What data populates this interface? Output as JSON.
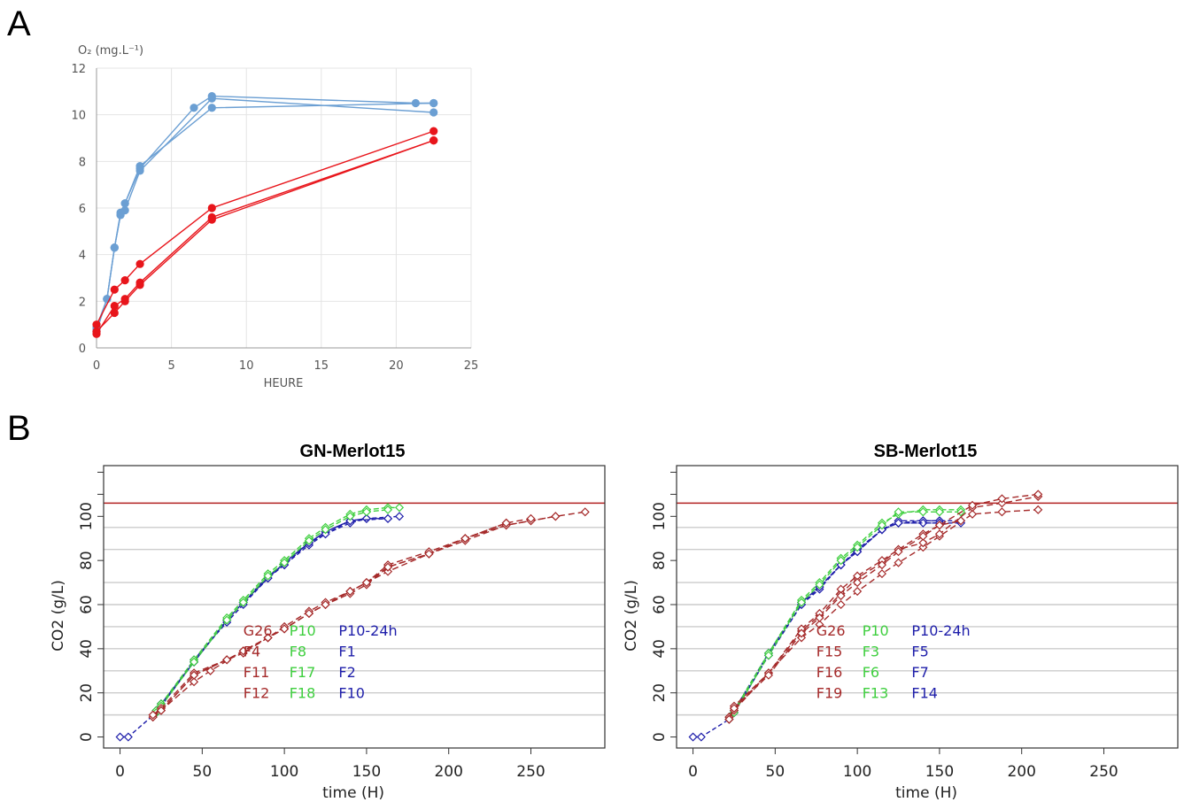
{
  "panel_labels": [
    "A",
    "B"
  ],
  "chart_data": [
    {
      "id": "A",
      "type": "line",
      "title": "",
      "ylabel": "O₂ (mg.L⁻¹)",
      "xlabel": "HEURE",
      "xlim": [
        0,
        25
      ],
      "ylim": [
        0,
        12
      ],
      "xticks": [
        0,
        5,
        10,
        15,
        20,
        25
      ],
      "yticks": [
        0,
        2,
        4,
        6,
        8,
        10,
        12
      ],
      "grid": true,
      "colors": {
        "blue": "#6b9fd3",
        "red": "#e8151b"
      },
      "series": [
        {
          "color": "blue",
          "x": [
            0,
            0.7,
            1.2,
            1.6,
            1.9,
            2.9,
            6.5,
            7.7,
            21.3,
            22.5
          ],
          "y": [
            0.8,
            2.1,
            4.3,
            5.7,
            6.2,
            7.7,
            10.3,
            10.8,
            10.5,
            10.5
          ]
        },
        {
          "color": "blue",
          "x": [
            0,
            0.7,
            1.2,
            1.6,
            1.9,
            2.9,
            7.7,
            22.5
          ],
          "y": [
            0.7,
            2.1,
            4.3,
            5.7,
            5.9,
            7.6,
            10.7,
            10.1
          ]
        },
        {
          "color": "blue",
          "x": [
            0,
            0.7,
            1.2,
            1.6,
            1.9,
            2.9,
            7.7,
            22.5
          ],
          "y": [
            0.9,
            2.1,
            4.3,
            5.8,
            6.2,
            7.8,
            10.3,
            10.5
          ]
        },
        {
          "color": "red",
          "x": [
            0,
            1.2,
            1.9,
            2.9,
            7.7,
            22.5
          ],
          "y": [
            1.0,
            2.5,
            2.9,
            3.6,
            6.0,
            9.3
          ]
        },
        {
          "color": "red",
          "x": [
            0,
            1.2,
            1.9,
            2.9,
            7.7,
            22.5
          ],
          "y": [
            0.6,
            1.8,
            2.1,
            2.8,
            5.6,
            8.9
          ]
        },
        {
          "color": "red",
          "x": [
            0,
            1.2,
            1.9,
            2.9,
            7.7,
            22.5
          ],
          "y": [
            0.7,
            1.5,
            2.0,
            2.7,
            5.5,
            8.9
          ]
        }
      ]
    },
    {
      "id": "B1",
      "type": "line",
      "title": "GN-Merlot15",
      "xlabel": "time (H)",
      "ylabel": "CO2 (g/L)",
      "xlim": [
        -10,
        295
      ],
      "ylim": [
        -5,
        123
      ],
      "xticks": [
        0,
        50,
        100,
        150,
        200,
        250
      ],
      "yticks": [
        0,
        20,
        40,
        60,
        80,
        100
      ],
      "hlines": [
        10,
        20,
        30,
        40,
        50,
        60,
        70,
        85,
        95
      ],
      "refline": 106,
      "colors": {
        "red": "#a52a2a",
        "green": "#3fcf3f",
        "blue": "#1e1eaa",
        "ref": "#b22222",
        "grid": "#cccccc"
      },
      "legend": [
        {
          "text": "G26",
          "color": "red",
          "col": 0,
          "row": 0
        },
        {
          "text": "P10",
          "color": "green",
          "col": 1,
          "row": 0
        },
        {
          "text": "P10-24h",
          "color": "blue",
          "col": 2,
          "row": 0
        },
        {
          "text": "F4",
          "color": "red",
          "col": 0,
          "row": 1
        },
        {
          "text": "F8",
          "color": "green",
          "col": 1,
          "row": 1
        },
        {
          "text": "F1",
          "color": "blue",
          "col": 2,
          "row": 1
        },
        {
          "text": "F11",
          "color": "red",
          "col": 0,
          "row": 2
        },
        {
          "text": "F17",
          "color": "green",
          "col": 1,
          "row": 2
        },
        {
          "text": "F2",
          "color": "blue",
          "col": 2,
          "row": 2
        },
        {
          "text": "F12",
          "color": "red",
          "col": 0,
          "row": 3
        },
        {
          "text": "F18",
          "color": "green",
          "col": 1,
          "row": 3
        },
        {
          "text": "F10",
          "color": "blue",
          "col": 2,
          "row": 3
        }
      ],
      "series": [
        {
          "color": "blue",
          "x": [
            0,
            5,
            22,
            25,
            45,
            65,
            75,
            90,
            100,
            115,
            125,
            140,
            150,
            163
          ],
          "y": [
            0,
            0,
            11,
            15,
            34,
            53,
            61,
            72,
            79,
            88,
            93,
            98,
            99,
            99
          ]
        },
        {
          "color": "blue",
          "x": [
            22,
            25,
            45,
            65,
            75,
            90,
            100,
            115,
            125,
            140,
            150,
            170
          ],
          "y": [
            11,
            14,
            35,
            52,
            60,
            72,
            78,
            87,
            92,
            97,
            99,
            100
          ]
        },
        {
          "color": "blue",
          "x": [
            22,
            25,
            45,
            65,
            75,
            90,
            100,
            115,
            125,
            140,
            150
          ],
          "y": [
            12,
            15,
            34,
            53,
            61,
            73,
            78,
            88,
            93,
            98,
            99
          ]
        },
        {
          "color": "blue",
          "x": [
            22,
            25,
            45,
            65,
            75,
            90,
            100,
            115,
            125,
            140,
            163
          ],
          "y": [
            11,
            14,
            34,
            53,
            61,
            72,
            79,
            88,
            92,
            98,
            99
          ]
        },
        {
          "color": "green",
          "x": [
            22,
            25,
            45,
            65,
            75,
            90,
            100,
            115,
            125,
            140,
            150,
            163,
            170
          ],
          "y": [
            12,
            15,
            35,
            54,
            62,
            74,
            80,
            90,
            95,
            101,
            103,
            104,
            104
          ]
        },
        {
          "color": "green",
          "x": [
            22,
            25,
            45,
            65,
            75,
            90,
            100,
            115,
            125,
            140,
            150,
            163
          ],
          "y": [
            11,
            14,
            34,
            53,
            61,
            73,
            79,
            89,
            94,
            100,
            102,
            103
          ]
        },
        {
          "color": "red",
          "x": [
            20,
            25,
            45,
            55,
            75,
            90,
            100,
            115,
            125,
            140,
            150,
            163,
            188,
            210,
            235,
            250,
            265,
            283
          ],
          "y": [
            9,
            12,
            25,
            30,
            39,
            45,
            49,
            56,
            60,
            66,
            70,
            75,
            83,
            89,
            96,
            98,
            100,
            102
          ]
        },
        {
          "color": "red",
          "x": [
            20,
            25,
            45,
            65,
            75,
            90,
            100,
            115,
            125,
            140,
            150,
            163,
            188,
            210,
            235,
            250,
            265
          ],
          "y": [
            10,
            13,
            29,
            35,
            39,
            45,
            49,
            56,
            60,
            65,
            69,
            77,
            83,
            90,
            96,
            98,
            100
          ]
        },
        {
          "color": "red",
          "x": [
            20,
            25,
            45,
            65,
            75,
            90,
            100,
            115,
            125,
            140,
            150,
            163,
            188,
            210,
            235,
            250
          ],
          "y": [
            9,
            12,
            28,
            35,
            38,
            45,
            50,
            57,
            61,
            66,
            70,
            78,
            84,
            90,
            97,
            99
          ]
        },
        {
          "color": "red",
          "x": [
            20,
            25,
            45,
            65,
            75,
            90,
            100,
            115,
            125,
            140,
            150,
            163,
            188,
            210,
            235
          ],
          "y": [
            10,
            12,
            28,
            35,
            39,
            45,
            49,
            56,
            60,
            66,
            70,
            77,
            83,
            90,
            97
          ]
        }
      ]
    },
    {
      "id": "B2",
      "type": "line",
      "title": "SB-Merlot15",
      "xlabel": "time (H)",
      "ylabel": "CO2 (g/L)",
      "xlim": [
        -10,
        295
      ],
      "ylim": [
        -5,
        123
      ],
      "xticks": [
        0,
        50,
        100,
        150,
        200,
        250
      ],
      "yticks": [
        0,
        20,
        40,
        60,
        80,
        100
      ],
      "hlines": [
        10,
        20,
        30,
        40,
        50,
        60,
        70,
        85,
        95
      ],
      "refline": 106,
      "colors": {
        "red": "#a52a2a",
        "green": "#3fcf3f",
        "blue": "#1e1eaa",
        "ref": "#b22222",
        "grid": "#cccccc"
      },
      "legend": [
        {
          "text": "G26",
          "color": "red",
          "col": 0,
          "row": 0
        },
        {
          "text": "P10",
          "color": "green",
          "col": 1,
          "row": 0
        },
        {
          "text": "P10-24h",
          "color": "blue",
          "col": 2,
          "row": 0
        },
        {
          "text": "F15",
          "color": "red",
          "col": 0,
          "row": 1
        },
        {
          "text": "F3",
          "color": "green",
          "col": 1,
          "row": 1
        },
        {
          "text": "F5",
          "color": "blue",
          "col": 2,
          "row": 1
        },
        {
          "text": "F16",
          "color": "red",
          "col": 0,
          "row": 2
        },
        {
          "text": "F6",
          "color": "green",
          "col": 1,
          "row": 2
        },
        {
          "text": "F7",
          "color": "blue",
          "col": 2,
          "row": 2
        },
        {
          "text": "F19",
          "color": "red",
          "col": 0,
          "row": 3
        },
        {
          "text": "F13",
          "color": "green",
          "col": 1,
          "row": 3
        },
        {
          "text": "F14",
          "color": "blue",
          "col": 2,
          "row": 3
        }
      ],
      "series": [
        {
          "color": "blue",
          "x": [
            0,
            5,
            22,
            25,
            46,
            66,
            77,
            90,
            100,
            115,
            125,
            140,
            150,
            163
          ],
          "y": [
            0,
            0,
            8,
            11,
            37,
            60,
            68,
            78,
            84,
            94,
            97,
            98,
            98,
            98
          ]
        },
        {
          "color": "blue",
          "x": [
            22,
            25,
            46,
            66,
            77,
            90,
            100,
            115,
            125,
            140,
            150
          ],
          "y": [
            8,
            12,
            38,
            61,
            68,
            78,
            85,
            94,
            98,
            98,
            98
          ]
        },
        {
          "color": "blue",
          "x": [
            22,
            25,
            46,
            66,
            77,
            90,
            100,
            115,
            125,
            140,
            150,
            163
          ],
          "y": [
            9,
            11,
            37,
            60,
            67,
            78,
            84,
            94,
            97,
            97,
            97,
            97
          ]
        },
        {
          "color": "blue",
          "x": [
            22,
            25,
            46,
            66,
            77,
            90,
            100,
            115,
            125,
            150
          ],
          "y": [
            8,
            12,
            38,
            61,
            68,
            78,
            84,
            94,
            97,
            97
          ]
        },
        {
          "color": "green",
          "x": [
            22,
            25,
            46,
            66,
            77,
            90,
            100,
            115,
            125,
            140,
            150,
            163
          ],
          "y": [
            9,
            12,
            38,
            62,
            70,
            81,
            87,
            97,
            101,
            103,
            103,
            103
          ]
        },
        {
          "color": "green",
          "x": [
            22,
            25,
            46,
            66,
            77,
            90,
            100,
            115,
            125,
            140,
            150,
            163
          ],
          "y": [
            8,
            11,
            37,
            61,
            69,
            80,
            86,
            96,
            102,
            102,
            102,
            102
          ]
        },
        {
          "color": "red",
          "x": [
            22,
            25,
            46,
            66,
            77,
            90,
            100,
            115,
            125,
            140,
            150,
            170,
            188,
            210
          ],
          "y": [
            9,
            12,
            29,
            45,
            51,
            60,
            66,
            74,
            79,
            86,
            91,
            101,
            102,
            103
          ]
        },
        {
          "color": "red",
          "x": [
            22,
            25,
            46,
            66,
            77,
            90,
            100,
            115,
            125,
            140,
            150,
            170,
            188,
            210
          ],
          "y": [
            9,
            13,
            29,
            48,
            55,
            65,
            72,
            79,
            85,
            88,
            92,
            104,
            106,
            109
          ]
        },
        {
          "color": "red",
          "x": [
            22,
            25,
            46,
            66,
            77,
            90,
            100,
            115,
            125,
            140,
            150,
            170,
            188,
            210
          ],
          "y": [
            8,
            14,
            29,
            49,
            56,
            67,
            73,
            80,
            85,
            92,
            96,
            105,
            108,
            110
          ]
        },
        {
          "color": "red",
          "x": [
            22,
            25,
            46,
            66,
            77,
            90,
            100,
            115,
            125,
            140,
            150,
            163
          ],
          "y": [
            8,
            13,
            28,
            47,
            54,
            64,
            70,
            78,
            84,
            91,
            96,
            98
          ]
        }
      ]
    }
  ]
}
